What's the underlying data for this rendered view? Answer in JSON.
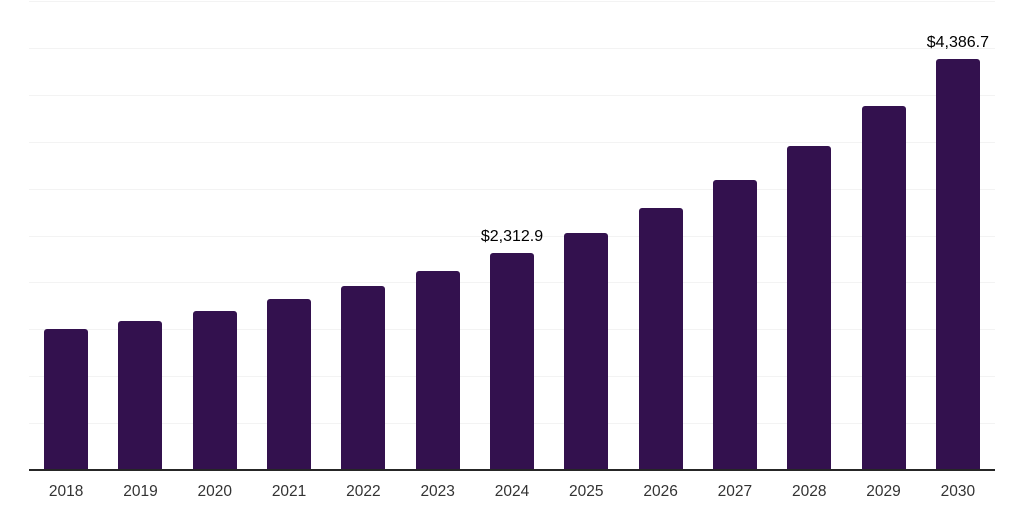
{
  "chart_data": {
    "type": "bar",
    "title": "",
    "xlabel": "",
    "ylabel": "",
    "categories": [
      "2018",
      "2019",
      "2020",
      "2021",
      "2022",
      "2023",
      "2024",
      "2025",
      "2026",
      "2027",
      "2028",
      "2029",
      "2030"
    ],
    "values": [
      1500,
      1587,
      1700,
      1820,
      1958,
      2122,
      2312.9,
      2525,
      2795,
      3093,
      3450,
      3885,
      4386.7
    ],
    "data_labels": [
      {
        "index": 6,
        "text": "$2,312.9"
      },
      {
        "index": 12,
        "text": "$4,386.7"
      }
    ],
    "ylim": [
      0,
      5000
    ],
    "gridline_step": 500,
    "grid": true,
    "legend": false,
    "y_tick_labels_shown": false,
    "colors": {
      "bar": "#33114E",
      "gridline": "#F3F3F3",
      "axis_line": "#262626",
      "x_tick_label": "#333333",
      "data_label": "#000000",
      "background": "#FFFFFF"
    }
  }
}
